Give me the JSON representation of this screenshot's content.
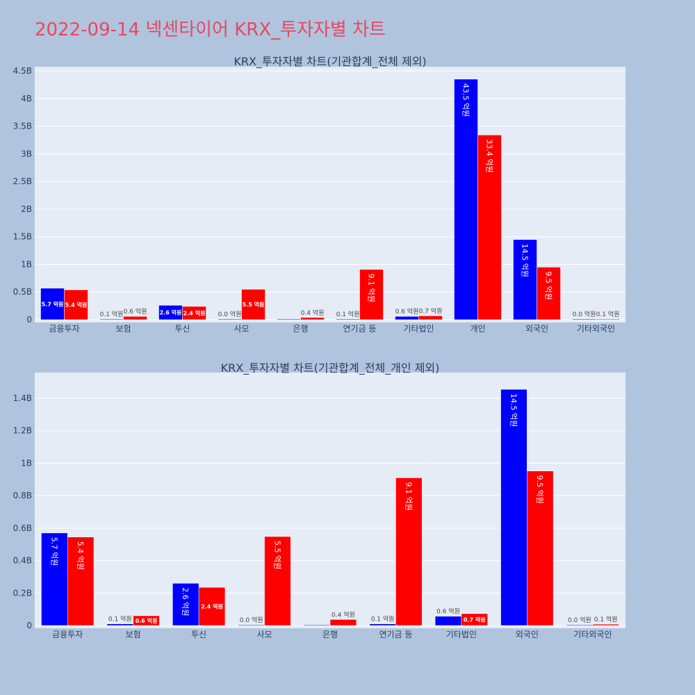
{
  "page_title": "2022-09-14 넥센타이어 KRX_투자자별 차트",
  "colors": {
    "buy": "#0000ff",
    "sell": "#ff0000",
    "plot_bg": "#e5ecf6",
    "paper_bg": "#b0c4de",
    "title": "#e8475f"
  },
  "chart_data": [
    {
      "type": "bar",
      "title": "KRX_투자자별 차트(기관합계_전체 제외)",
      "categories": [
        "금융투자",
        "보험",
        "투신",
        "사모",
        "은행",
        "연기금 등",
        "기타법인",
        "개인",
        "외국인",
        "기타외국인"
      ],
      "series": [
        {
          "values": [
            0.57,
            0.01,
            0.26,
            0.0,
            0.0,
            0.01,
            0.06,
            4.35,
            1.45,
            0.0
          ],
          "labels": [
            "5.7 억원",
            "0.1 억원",
            "2.6 억원",
            "0.0 억원",
            "",
            "0.1 억원",
            "0.6 억원",
            "43.5 억원",
            "14.5 억원",
            "0.0 억원"
          ]
        },
        {
          "values": [
            0.54,
            0.06,
            0.24,
            0.55,
            0.04,
            0.91,
            0.07,
            3.34,
            0.95,
            0.01
          ],
          "labels": [
            "5.4 억원",
            "0.6 억원",
            "2.4 억원",
            "5.5 억원",
            "0.4 억원",
            "9.1 억원",
            "0.7 억원",
            "33.4 억원",
            "9.5 억원",
            "0.1 억원"
          ]
        }
      ],
      "ylim": [
        0,
        4.55
      ],
      "yticks": [
        0,
        0.5,
        1,
        1.5,
        2,
        2.5,
        3,
        3.5,
        4,
        4.5
      ],
      "ytick_labels": [
        "0",
        "0.5B",
        "1B",
        "1.5B",
        "2B",
        "2.5B",
        "3B",
        "3.5B",
        "4B",
        "4.5B"
      ],
      "grid": true
    },
    {
      "type": "bar",
      "title": "KRX_투자자별 차트(기관합계_전체_개인 제외)",
      "categories": [
        "금융투자",
        "보험",
        "투신",
        "사모",
        "은행",
        "연기금 등",
        "기타법인",
        "외국인",
        "기타외국인"
      ],
      "series": [
        {
          "values": [
            0.57,
            0.01,
            0.26,
            0.0,
            0.0,
            0.01,
            0.057,
            1.455,
            0.0
          ],
          "labels": [
            "5.7 억원",
            "0.1 억원",
            "2.6 억원",
            "0.0 억원",
            "",
            "0.1 억원",
            "0.6 억원",
            "14.5 억원",
            "0.0 억원"
          ]
        },
        {
          "values": [
            0.545,
            0.06,
            0.235,
            0.548,
            0.037,
            0.91,
            0.073,
            0.952,
            0.008
          ],
          "labels": [
            "5.4 억원",
            "0.6 억원",
            "2.4 억원",
            "5.5 억원",
            "0.4 억원",
            "9.1 억원",
            "0.7 억원",
            "9.5 억원",
            "0.1 억원"
          ]
        }
      ],
      "ylim": [
        0,
        1.55
      ],
      "yticks": [
        0,
        0.2,
        0.4,
        0.6,
        0.8,
        1.0,
        1.2,
        1.4
      ],
      "ytick_labels": [
        "0",
        "0.2B",
        "0.4B",
        "0.6B",
        "0.8B",
        "1B",
        "1.2B",
        "1.4B"
      ],
      "grid": true
    }
  ]
}
